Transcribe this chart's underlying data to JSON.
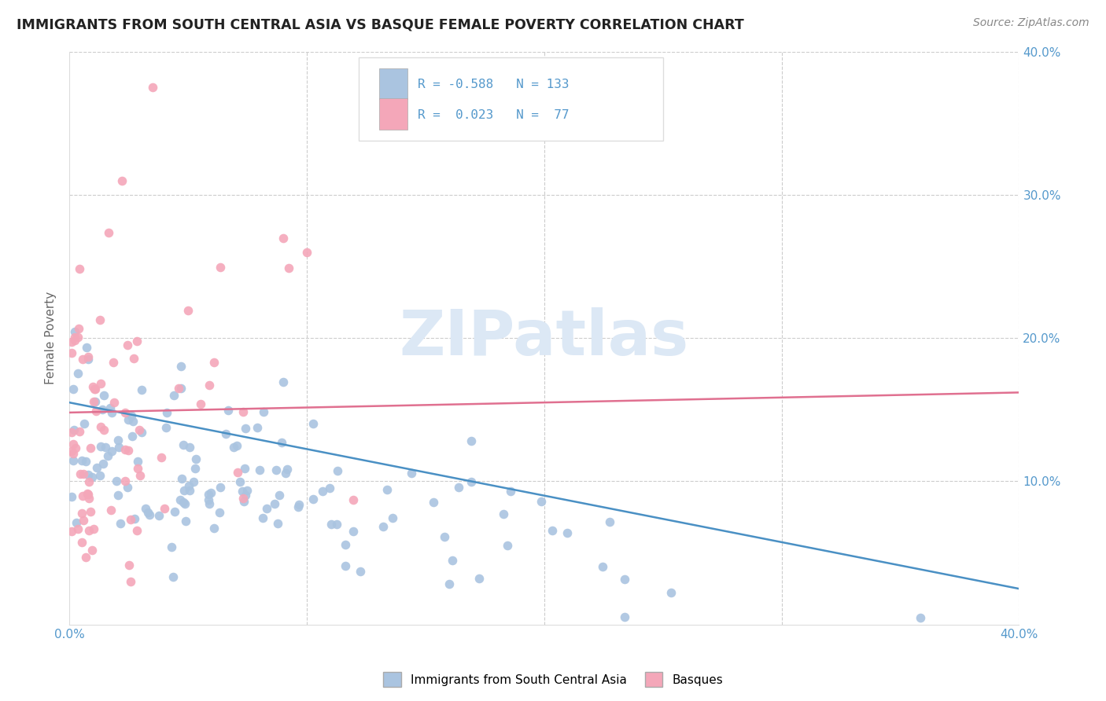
{
  "title": "IMMIGRANTS FROM SOUTH CENTRAL ASIA VS BASQUE FEMALE POVERTY CORRELATION CHART",
  "source": "Source: ZipAtlas.com",
  "ylabel": "Female Poverty",
  "legend_label_1": "Immigrants from South Central Asia",
  "legend_label_2": "Basques",
  "R1": -0.588,
  "N1": 133,
  "R2": 0.023,
  "N2": 77,
  "xlim": [
    0.0,
    0.4
  ],
  "ylim": [
    0.0,
    0.4
  ],
  "color_blue": "#aac4e0",
  "color_pink": "#f4a7b9",
  "line_blue": "#4a90c4",
  "line_pink": "#e07090",
  "axis_color": "#5599cc",
  "watermark_color": "#dce8f5",
  "background_color": "#ffffff",
  "grid_color": "#cccccc",
  "blue_trend_start_y": 0.155,
  "blue_trend_end_y": 0.025,
  "pink_trend_start_y": 0.148,
  "pink_trend_end_y": 0.162
}
